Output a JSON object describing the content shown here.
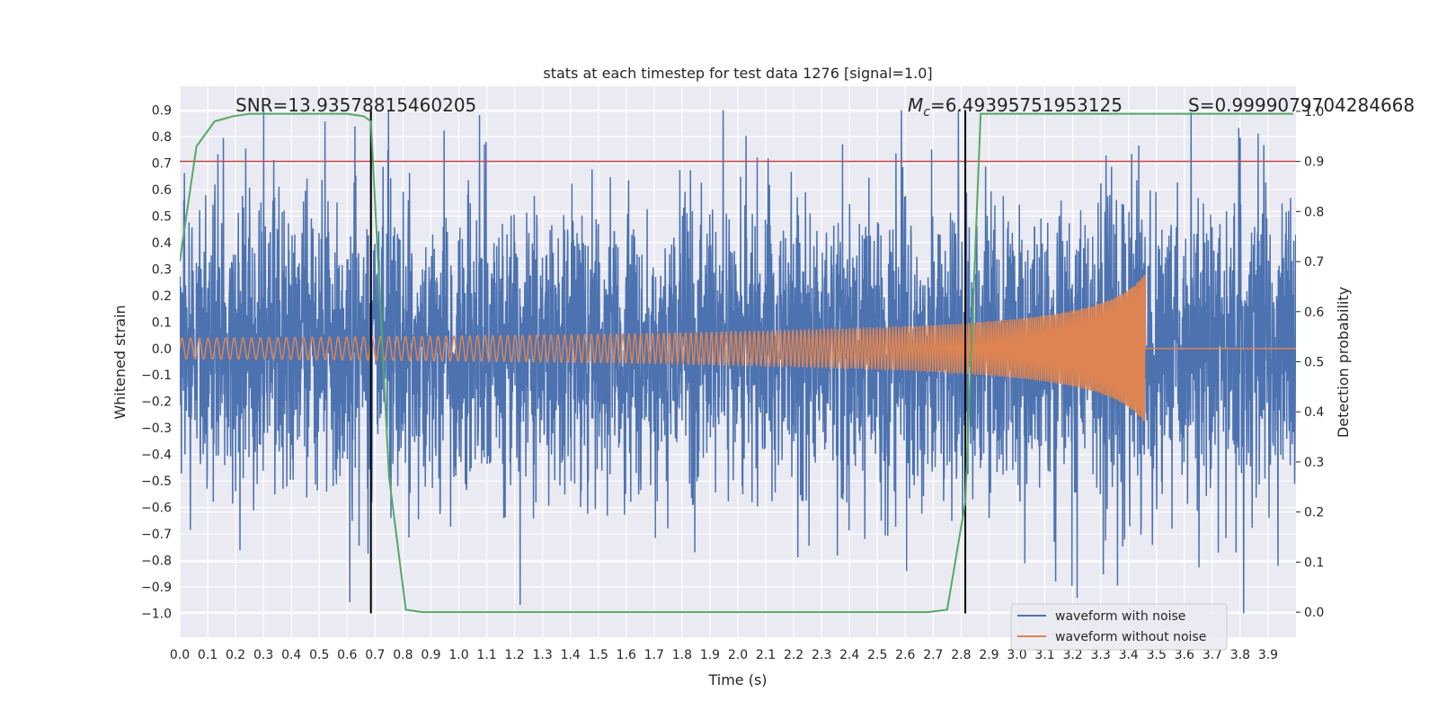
{
  "chart_data": {
    "type": "line",
    "title": "stats at each timestep for test data 1276 [signal=1.0]",
    "xlabel": "Time (s)",
    "ylabel": "Whitened strain",
    "y2label": "Detection probability",
    "xlim": [
      0.0,
      4.0
    ],
    "ylim": [
      -1.09,
      0.99
    ],
    "y2lim": [
      -0.05,
      1.05
    ],
    "xticks": [
      0.0,
      0.1,
      0.2,
      0.3,
      0.4,
      0.5,
      0.6,
      0.7,
      0.8,
      0.9,
      1.0,
      1.1,
      1.2,
      1.3,
      1.4,
      1.5,
      1.6,
      1.7,
      1.8,
      1.9,
      2.0,
      2.1,
      2.2,
      2.3,
      2.4,
      2.5,
      2.6,
      2.7,
      2.8,
      2.9,
      3.0,
      3.1,
      3.2,
      3.3,
      3.4,
      3.5,
      3.6,
      3.7,
      3.8,
      3.9
    ],
    "xtick_labels": [
      "0.0",
      "0.1",
      "0.2",
      "0.3",
      "0.4",
      "0.5",
      "0.6",
      "0.7",
      "0.8",
      "0.9",
      "1.0",
      "1.1",
      "1.2",
      "1.3",
      "1.4",
      "1.5",
      "1.6",
      "1.7",
      "1.8",
      "1.9",
      "2.0",
      "2.1",
      "2.2",
      "2.3",
      "2.4",
      "2.5",
      "2.6",
      "2.7",
      "2.8",
      "2.9",
      "3.0",
      "3.1",
      "3.2",
      "3.3",
      "3.4",
      "3.5",
      "3.6",
      "3.7",
      "3.8",
      "3.9"
    ],
    "yticks": [
      0.9,
      0.8,
      0.7,
      0.6,
      0.5,
      0.4,
      0.3,
      0.2,
      0.1,
      0.0,
      -0.1,
      -0.2,
      -0.3,
      -0.4,
      -0.5,
      -0.6,
      -0.7,
      -0.8,
      -0.9,
      -1.0
    ],
    "ytick_labels": [
      "0.9",
      "0.8",
      "0.7",
      "0.6",
      "0.5",
      "0.4",
      "0.3",
      "0.2",
      "0.1",
      "0.0",
      "−0.1",
      "−0.2",
      "−0.3",
      "−0.4",
      "−0.5",
      "−0.6",
      "−0.7",
      "−0.8",
      "−0.9",
      "−1.0"
    ],
    "y2ticks": [
      1.0,
      0.9,
      0.8,
      0.7,
      0.6,
      0.5,
      0.4,
      0.3,
      0.2,
      0.1,
      0.0
    ],
    "y2tick_labels": [
      "1.0",
      "0.9",
      "0.8",
      "0.7",
      "0.6",
      "0.5",
      "0.4",
      "0.3",
      "0.2",
      "0.1",
      "0.0"
    ],
    "annotations": {
      "snr": "SNR=13.93578815460205",
      "mc_symbol": "M",
      "mc_sub": "c",
      "mc_value": "=6.49395751953125",
      "s": "S=0.9999079704284668"
    },
    "vertical_markers_x": [
      0.685,
      2.815
    ],
    "threshold_probability": 0.9,
    "legend": {
      "position": "lower-right",
      "entries": [
        "waveform with noise",
        "waveform without noise"
      ]
    },
    "series": [
      {
        "name": "waveform with noise",
        "color": "#4c72b0",
        "axis": "left",
        "kind": "noise",
        "std": 0.28,
        "sample_rate": 1024,
        "peak_min": -1.0,
        "peak_max": 0.9
      },
      {
        "name": "waveform without noise",
        "color": "#dd8452",
        "axis": "left",
        "kind": "chirp",
        "merger_time": 3.46,
        "amplitude_start": 0.04,
        "amplitude_peak": 0.37,
        "frequency_start": 32,
        "frequency_end": 110
      },
      {
        "name": "detection probability",
        "color": "#55a868",
        "axis": "right",
        "x": [
          0.0,
          0.06,
          0.125,
          0.19,
          0.25,
          0.3,
          0.4,
          0.5,
          0.6,
          0.66,
          0.685,
          0.75,
          0.81,
          0.87,
          0.93,
          1.0,
          1.5,
          2.0,
          2.5,
          2.68,
          2.75,
          2.815,
          2.87,
          2.93,
          3.0,
          3.5,
          3.99
        ],
        "values": [
          0.7,
          0.93,
          0.98,
          0.99,
          0.995,
          0.995,
          0.995,
          0.995,
          0.995,
          0.99,
          0.98,
          0.27,
          0.005,
          0.0,
          0.0,
          0.0,
          0.0,
          0.0,
          0.0,
          0.0,
          0.005,
          0.22,
          0.995,
          0.995,
          0.995,
          0.995,
          0.995
        ]
      }
    ],
    "colors": {
      "background": "#eaeaf2",
      "grid": "#ffffff",
      "threshold": "#c44e52",
      "marker": "#000000"
    }
  }
}
